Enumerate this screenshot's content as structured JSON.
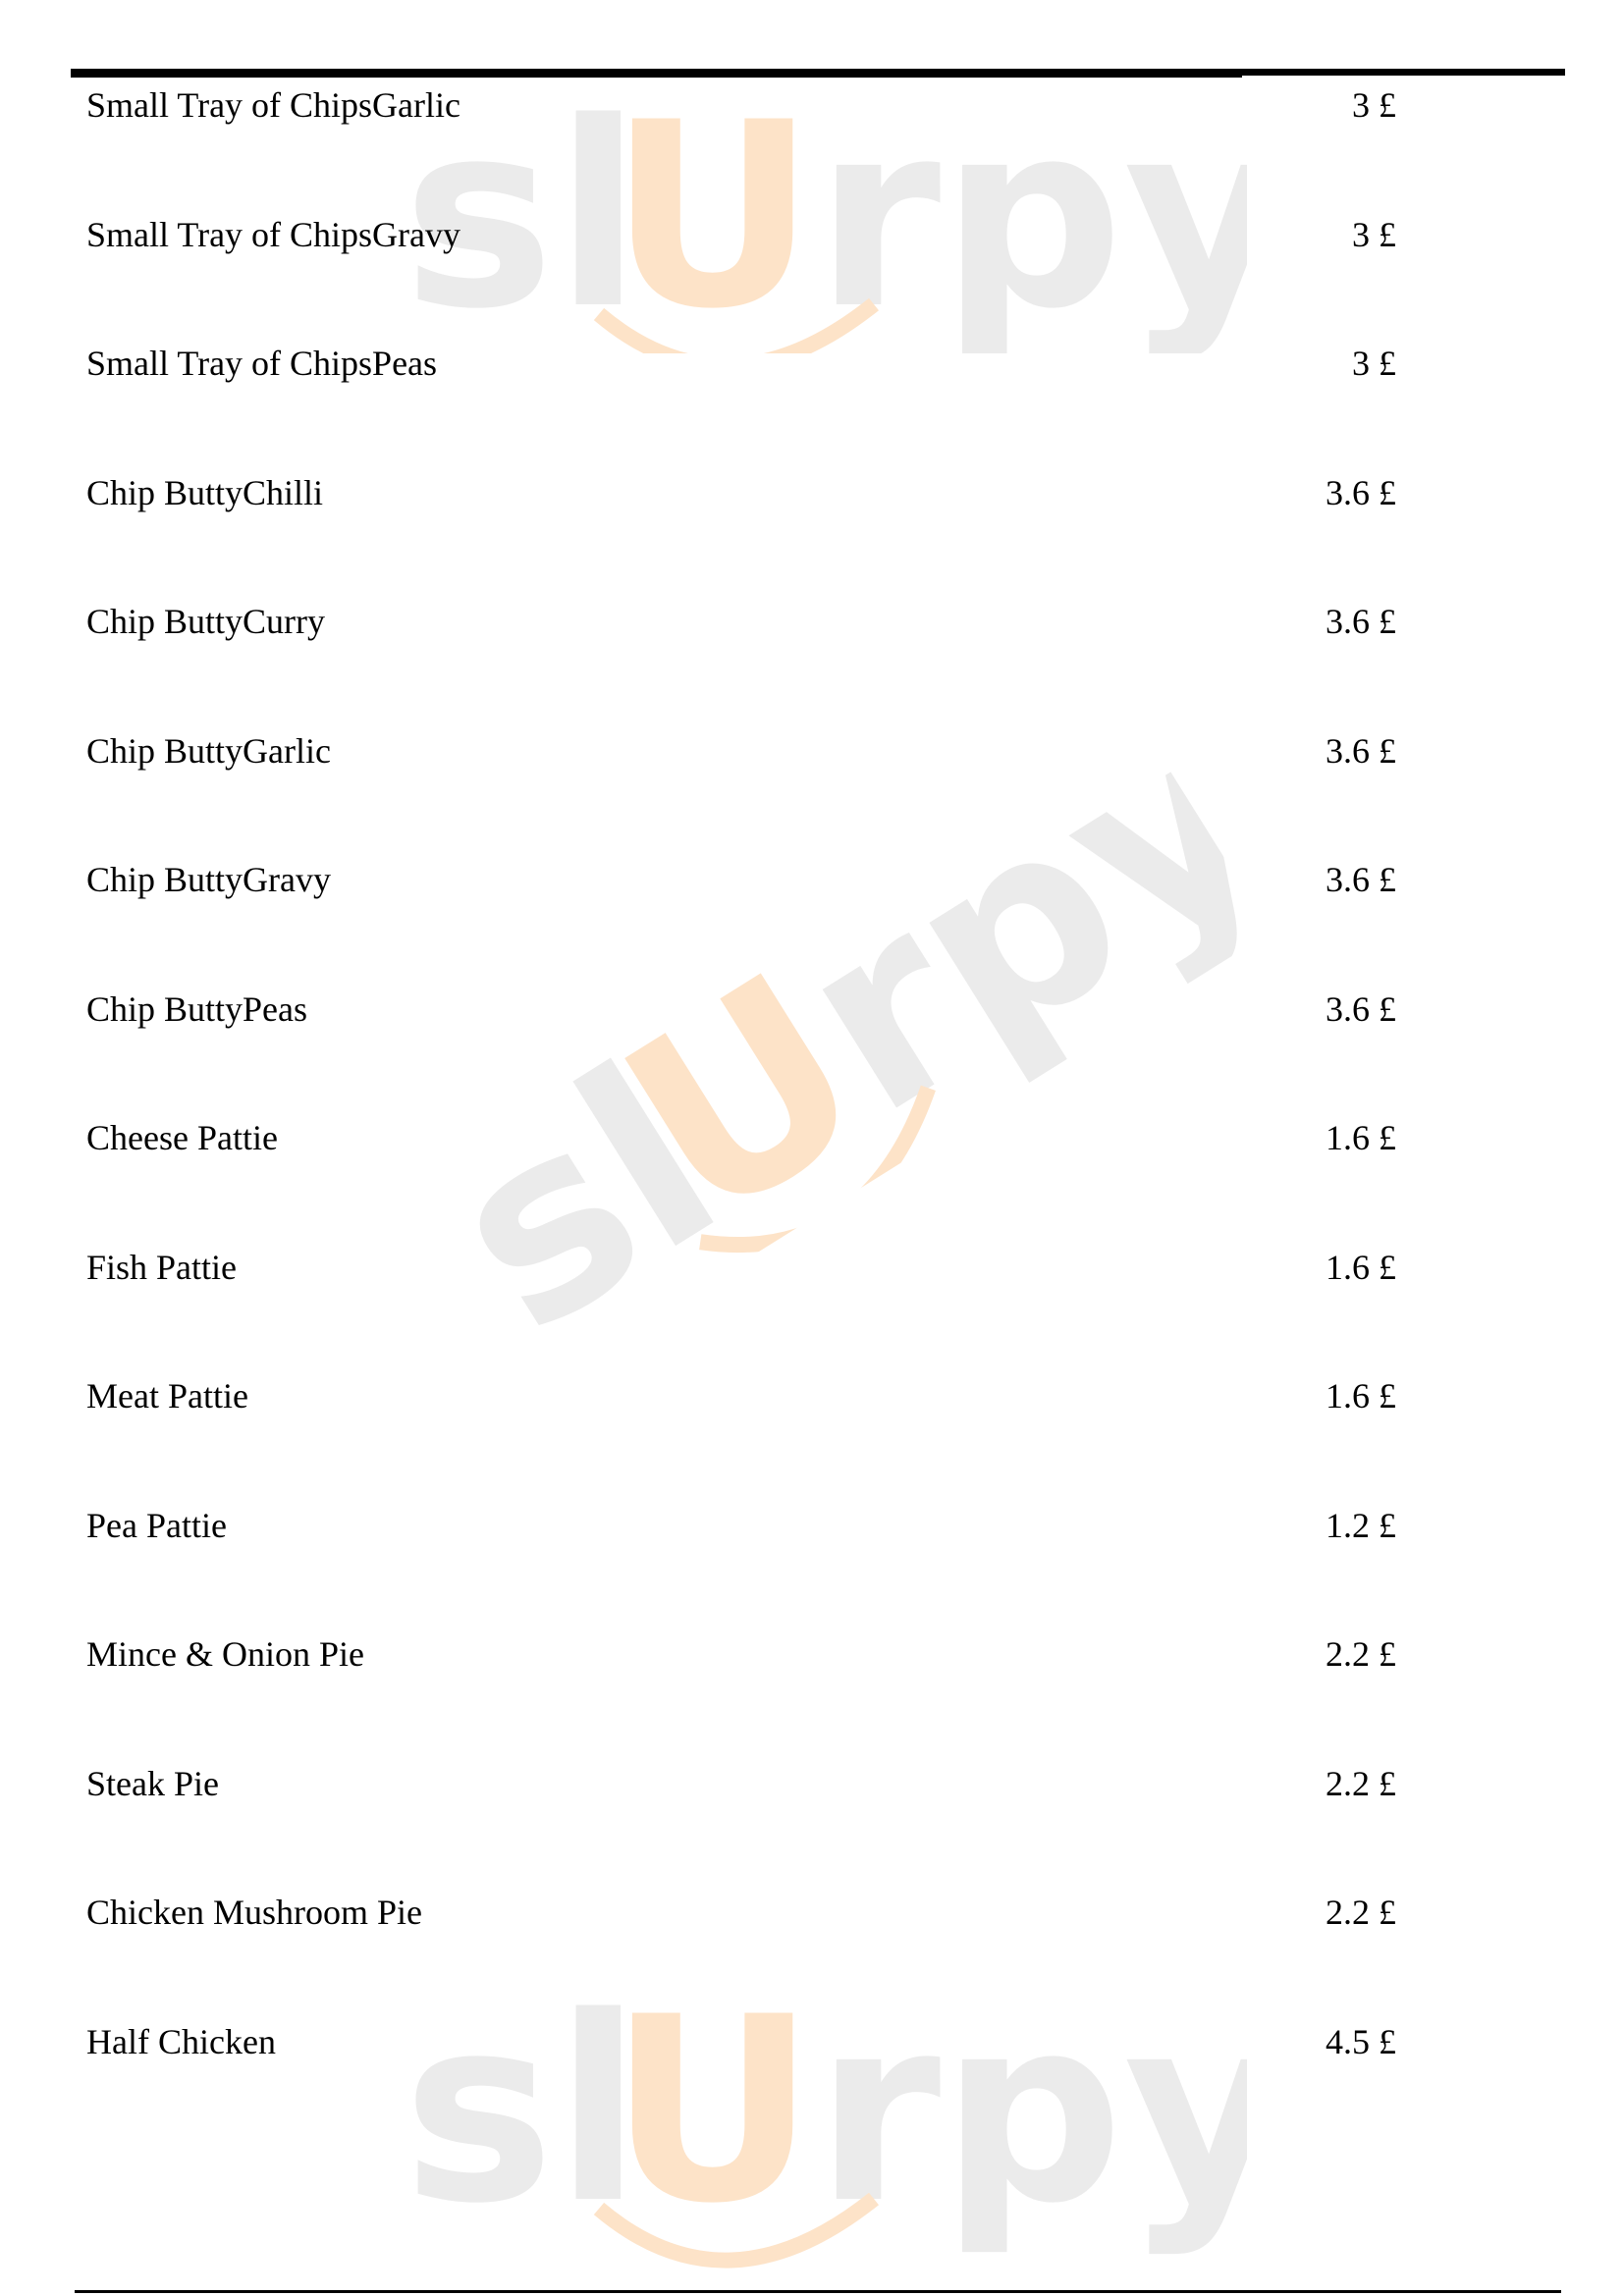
{
  "watermark": "slUrpy",
  "colors": {
    "watermark_grey": "#e8e8e8",
    "watermark_orange": "#fde6cf"
  },
  "menu_items": [
    {
      "name": "Small Tray of ChipsGarlic",
      "price": "3 £"
    },
    {
      "name": "Small Tray of ChipsGravy",
      "price": "3 £"
    },
    {
      "name": "Small Tray of ChipsPeas",
      "price": "3 £"
    },
    {
      "name": "Chip ButtyChilli",
      "price": "3.6 £"
    },
    {
      "name": "Chip ButtyCurry",
      "price": "3.6 £"
    },
    {
      "name": "Chip ButtyGarlic",
      "price": "3.6 £"
    },
    {
      "name": "Chip ButtyGravy",
      "price": "3.6 £"
    },
    {
      "name": "Chip ButtyPeas",
      "price": "3.6 £"
    },
    {
      "name": "Cheese Pattie",
      "price": "1.6 £"
    },
    {
      "name": "Fish Pattie",
      "price": "1.6 £"
    },
    {
      "name": "Meat Pattie",
      "price": "1.6 £"
    },
    {
      "name": "Pea Pattie",
      "price": "1.2 £"
    },
    {
      "name": "Mince & Onion Pie",
      "price": "2.2 £"
    },
    {
      "name": "Steak Pie",
      "price": "2.2 £"
    },
    {
      "name": "Chicken Mushroom Pie",
      "price": "2.2 £"
    },
    {
      "name": "Half Chicken",
      "price": "4.5 £"
    }
  ]
}
